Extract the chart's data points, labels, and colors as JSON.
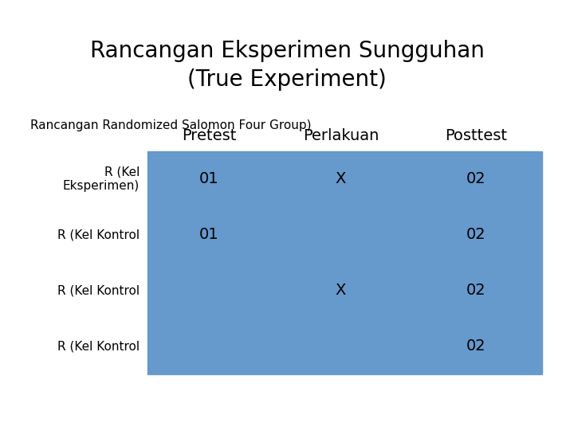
{
  "title_line1": "Rancangan Eksperimen Sungguhan",
  "title_line2": "(True Experiment)",
  "subtitle": "Rancangan Randomized Salomon Four Group)",
  "col_headers": [
    "Pretest",
    "Perlakuan",
    "Posttest"
  ],
  "row_labels": [
    "R (Kel\nEksperimen)",
    "R (Kel Kontrol",
    "R (Kel Kontrol",
    "R (Kel Kontrol"
  ],
  "table_data": [
    [
      "01",
      "X",
      "02"
    ],
    [
      "01",
      "",
      "02"
    ],
    [
      "",
      "X",
      "02"
    ],
    [
      "",
      "",
      "02"
    ]
  ],
  "bg_color": "#ffffff",
  "cell_color": "#6699cc",
  "text_color": "#000000",
  "title_fontsize": 20,
  "subtitle_fontsize": 11,
  "header_fontsize": 14,
  "cell_fontsize": 14,
  "label_fontsize": 11
}
